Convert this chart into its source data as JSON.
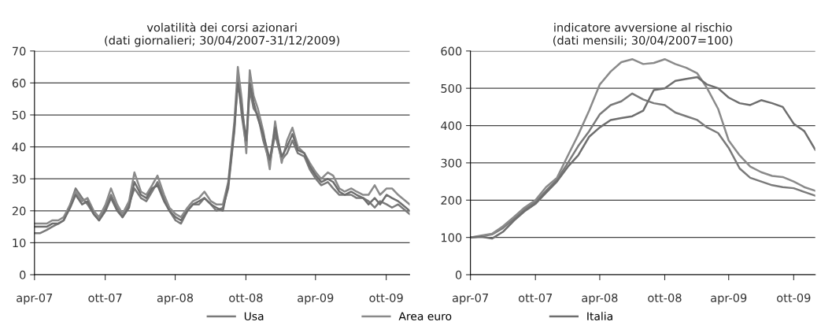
{
  "chart_data": [
    {
      "type": "line",
      "title": "volatilità dei corsi azionari",
      "subtitle": "(dati giornalieri; 30/04/2007-31/12/2009)",
      "x": [
        "2007-04-30",
        "2007-05-15",
        "2007-06-01",
        "2007-06-15",
        "2007-07-01",
        "2007-07-15",
        "2007-08-01",
        "2007-08-15",
        "2007-09-01",
        "2007-09-15",
        "2007-10-01",
        "2007-10-15",
        "2007-11-01",
        "2007-11-15",
        "2007-12-01",
        "2007-12-15",
        "2008-01-01",
        "2008-01-15",
        "2008-02-01",
        "2008-02-15",
        "2008-03-01",
        "2008-03-15",
        "2008-04-01",
        "2008-04-15",
        "2008-05-01",
        "2008-05-15",
        "2008-06-01",
        "2008-06-15",
        "2008-07-01",
        "2008-07-15",
        "2008-08-01",
        "2008-08-15",
        "2008-09-01",
        "2008-09-15",
        "2008-10-01",
        "2008-10-10",
        "2008-10-20",
        "2008-11-01",
        "2008-11-10",
        "2008-11-20",
        "2008-12-01",
        "2008-12-15",
        "2009-01-01",
        "2009-01-15",
        "2009-02-01",
        "2009-02-15",
        "2009-03-01",
        "2009-03-15",
        "2009-04-01",
        "2009-04-15",
        "2009-05-01",
        "2009-05-15",
        "2009-06-01",
        "2009-06-15",
        "2009-07-01",
        "2009-07-15",
        "2009-08-01",
        "2009-08-15",
        "2009-09-01",
        "2009-09-15",
        "2009-10-01",
        "2009-10-15",
        "2009-11-01",
        "2009-11-15",
        "2009-12-01",
        "2009-12-31"
      ],
      "series": [
        {
          "name": "Usa",
          "color": "#7a7a7a",
          "values": [
            13,
            13,
            14,
            15,
            16,
            17,
            22,
            27,
            24,
            22,
            19,
            17,
            21,
            25,
            21,
            18,
            22,
            27,
            24,
            23,
            26,
            29,
            24,
            20,
            17,
            16,
            20,
            22,
            22,
            24,
            22,
            20,
            21,
            27,
            45,
            62,
            50,
            40,
            58,
            52,
            50,
            42,
            35,
            44,
            36,
            38,
            42,
            38,
            37,
            33,
            30,
            28,
            29,
            27,
            25,
            25,
            25,
            24,
            24,
            23,
            21,
            23,
            22,
            21,
            22,
            19
          ]
        },
        {
          "name": "Area euro",
          "color": "#8a8a8a",
          "values": [
            16,
            16,
            16,
            17,
            17,
            18,
            22,
            26,
            23,
            24,
            20,
            18,
            22,
            27,
            22,
            19,
            23,
            32,
            26,
            25,
            28,
            31,
            25,
            21,
            19,
            18,
            21,
            23,
            24,
            26,
            23,
            22,
            22,
            29,
            48,
            65,
            55,
            38,
            64,
            56,
            52,
            45,
            33,
            48,
            35,
            42,
            46,
            40,
            38,
            35,
            32,
            30,
            32,
            31,
            27,
            26,
            27,
            26,
            25,
            25,
            28,
            25,
            27,
            27,
            25,
            22
          ]
        },
        {
          "name": "Italia",
          "color": "#6e6e6e",
          "values": [
            15,
            15,
            15,
            16,
            16,
            17,
            21,
            25,
            22,
            23,
            19,
            17,
            20,
            24,
            20,
            18,
            21,
            29,
            25,
            24,
            27,
            28,
            23,
            20,
            18,
            17,
            20,
            22,
            23,
            24,
            22,
            21,
            20,
            28,
            46,
            60,
            52,
            42,
            60,
            54,
            49,
            44,
            36,
            46,
            37,
            40,
            44,
            39,
            38,
            34,
            31,
            29,
            30,
            29,
            26,
            25,
            26,
            25,
            24,
            22,
            24,
            22,
            25,
            24,
            23,
            20
          ]
        }
      ],
      "xlim": [
        "2007-04-30",
        "2009-12-31"
      ],
      "xticks": [
        {
          "value": "2007-04-30",
          "label": "apr-07"
        },
        {
          "value": "2007-10-31",
          "label": "ott-07"
        },
        {
          "value": "2008-04-30",
          "label": "apr-08"
        },
        {
          "value": "2008-10-31",
          "label": "ott-08"
        },
        {
          "value": "2009-04-30",
          "label": "apr-09"
        },
        {
          "value": "2009-10-31",
          "label": "ott-09"
        }
      ],
      "ylim": [
        0,
        70
      ],
      "yticks": [
        0,
        10,
        20,
        30,
        40,
        50,
        60,
        70
      ],
      "grid": "y",
      "legend": "bottom"
    },
    {
      "type": "line",
      "title": "indicatore avversione al rischio",
      "subtitle": "(dati mensili; 30/04/2007=100)",
      "x": [
        "2007-04-30",
        "2007-05-31",
        "2007-06-30",
        "2007-07-31",
        "2007-08-31",
        "2007-09-30",
        "2007-10-31",
        "2007-11-30",
        "2007-12-31",
        "2008-01-31",
        "2008-02-29",
        "2008-03-31",
        "2008-04-30",
        "2008-05-31",
        "2008-06-30",
        "2008-07-31",
        "2008-08-31",
        "2008-09-30",
        "2008-10-31",
        "2008-11-30",
        "2008-12-31",
        "2009-01-31",
        "2009-02-28",
        "2009-03-31",
        "2009-04-30",
        "2009-05-31",
        "2009-06-30",
        "2009-07-31",
        "2009-08-31",
        "2009-09-30",
        "2009-10-31",
        "2009-11-30",
        "2009-12-31"
      ],
      "series": [
        {
          "color": "#7a7a7a",
          "values": [
            100,
            103,
            108,
            125,
            150,
            175,
            195,
            225,
            255,
            300,
            345,
            385,
            430,
            455,
            465,
            486,
            470,
            460,
            455,
            435,
            425,
            415,
            395,
            380,
            340,
            285,
            260,
            250,
            240,
            235,
            232,
            222,
            212
          ]
        },
        {
          "color": "#8a8a8a",
          "values": [
            100,
            105,
            110,
            130,
            155,
            180,
            200,
            235,
            260,
            320,
            375,
            440,
            510,
            545,
            570,
            578,
            565,
            568,
            578,
            565,
            555,
            540,
            500,
            445,
            360,
            320,
            290,
            275,
            265,
            262,
            250,
            235,
            225
          ]
        },
        {
          "color": "#6e6e6e",
          "values": [
            100,
            102,
            97,
            115,
            145,
            170,
            190,
            220,
            250,
            290,
            320,
            370,
            395,
            415,
            420,
            425,
            440,
            495,
            500,
            520,
            525,
            530,
            510,
            500,
            475,
            460,
            455,
            468,
            460,
            450,
            405,
            385,
            335
          ]
        }
      ],
      "xlim": [
        "2007-04-30",
        "2009-12-31"
      ],
      "xticks": [
        {
          "value": "2007-04-30",
          "label": "apr-07"
        },
        {
          "value": "2007-10-31",
          "label": "ott-07"
        },
        {
          "value": "2008-04-30",
          "label": "apr-08"
        },
        {
          "value": "2008-10-31",
          "label": "ott-08"
        },
        {
          "value": "2009-04-30",
          "label": "apr-09"
        },
        {
          "value": "2009-10-31",
          "label": "ott-09"
        }
      ],
      "ylim": [
        0,
        600
      ],
      "yticks": [
        0,
        100,
        200,
        300,
        400,
        500,
        600
      ],
      "grid": "y",
      "legend": false
    }
  ]
}
